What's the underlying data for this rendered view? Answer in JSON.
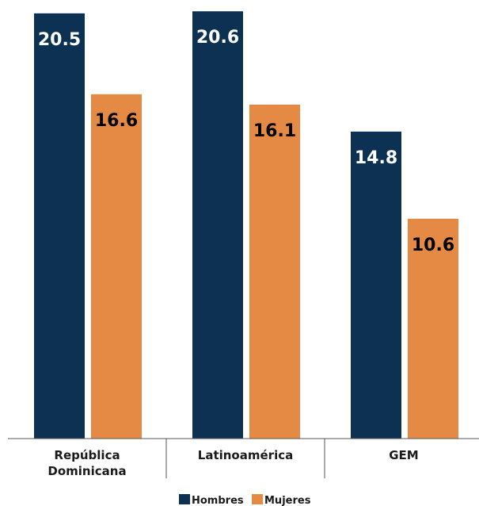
{
  "chart_data": {
    "type": "bar",
    "categories": [
      [
        "República",
        "Dominicana"
      ],
      [
        "Latinoamérica"
      ],
      [
        "GEM"
      ]
    ],
    "series": [
      {
        "name": "Hombres",
        "color": "#0d3152",
        "label_color": "#ffffff",
        "values": [
          20.5,
          20.6,
          14.8
        ]
      },
      {
        "name": "Mujeres",
        "color": "#e48a45",
        "label_color": "#000000",
        "values": [
          16.6,
          16.1,
          10.6
        ]
      }
    ],
    "title": "",
    "xlabel": "",
    "ylabel": "",
    "ylim": [
      0,
      20.8
    ],
    "grid": false,
    "value_labels": "inside-top",
    "legend": "bottom-center"
  }
}
